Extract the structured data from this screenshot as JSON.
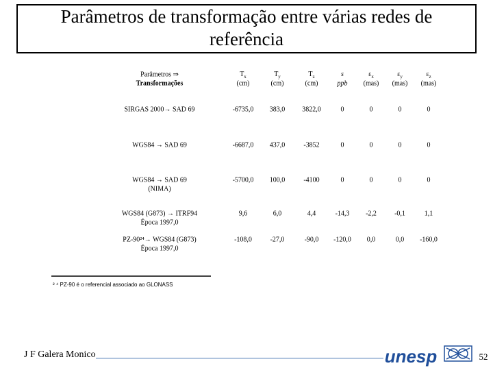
{
  "header": {
    "title_lines": [
      "Parâmetros de transformação entre várias redes de",
      "referência"
    ]
  },
  "table": {
    "corner": [
      "Parâmetros ⇒",
      "Transformações"
    ],
    "columns": [
      {
        "symbol": "T",
        "sub": "x",
        "unit": "(cm)"
      },
      {
        "symbol": "T",
        "sub": "y",
        "unit": "(cm)"
      },
      {
        "symbol": "T",
        "sub": "z",
        "unit": "(cm)"
      },
      {
        "symbol": "s",
        "sub": "",
        "unit": "ppb"
      },
      {
        "symbol": "ε",
        "sub": "x",
        "unit": "(mas)"
      },
      {
        "symbol": "ε",
        "sub": "y",
        "unit": "(mas)"
      },
      {
        "symbol": "ε",
        "sub": "z",
        "unit": "(mas)"
      }
    ],
    "rows": [
      {
        "label": [
          "SIRGAS 2000→ SAD 69"
        ],
        "cells": [
          "-6735,0",
          "383,0",
          "3822,0",
          "0",
          "0",
          "0",
          "0"
        ]
      },
      {
        "label": [
          "WGS84 → SAD 69"
        ],
        "cells": [
          "-6687,0",
          "437,0",
          "-3852",
          "0",
          "0",
          "0",
          "0"
        ]
      },
      {
        "label": [
          "WGS84 → SAD 69",
          "(NIMA)"
        ],
        "cells": [
          "-5700,0",
          "100,0",
          "-4100",
          "0",
          "0",
          "0",
          "0"
        ]
      },
      {
        "label": [
          "WGS84 (G873) → ITRF94",
          "Época 1997,0"
        ],
        "cells": [
          "9,6",
          "6,0",
          "4,4",
          "-14,3",
          "-2,2",
          "-0,1",
          "1,1"
        ]
      },
      {
        "label": [
          "PZ-90²⁴→ WGS84 (G873)",
          "Época 1997,0"
        ],
        "cells": [
          "-108,0",
          "-27,0",
          "-90,0",
          "-120,0",
          "0,0",
          "0,0",
          "-160,0"
        ]
      }
    ]
  },
  "footnote": "² ⁴ PZ-90 é o referencial associado ao GLONASS",
  "footer": {
    "author": "J F Galera Monico",
    "logo": "unesp",
    "page": "52"
  }
}
